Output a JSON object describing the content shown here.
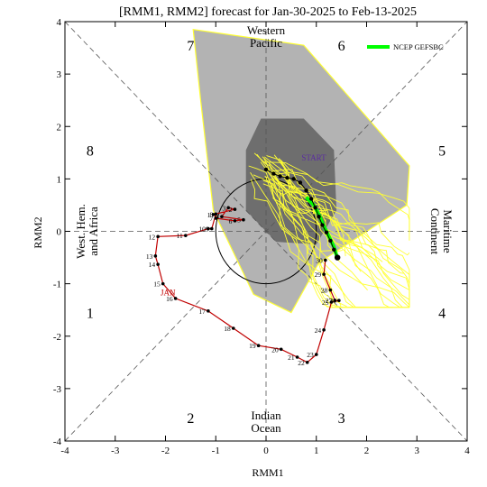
{
  "chart_data": {
    "type": "line",
    "title": "[RMM1, RMM2] forecast for Jan-30-2025 to Feb-13-2025",
    "xlabel": "RMM1",
    "ylabel": "RMM2",
    "xlim": [
      -4,
      4
    ],
    "ylim": [
      -4,
      4
    ],
    "xticks": [
      "-4",
      "-3",
      "-2",
      "-1",
      "0",
      "1",
      "2",
      "3",
      "4"
    ],
    "yticks": [
      "-4",
      "-3",
      "-2",
      "-1",
      "0",
      "1",
      "2",
      "3",
      "4"
    ],
    "grid": false,
    "legend": "top-right",
    "phase_numbers": [
      {
        "label": "1",
        "x": -3.5,
        "y": -1.55
      },
      {
        "label": "2",
        "x": -1.5,
        "y": -3.55
      },
      {
        "label": "3",
        "x": 1.5,
        "y": -3.55
      },
      {
        "label": "4",
        "x": 3.5,
        "y": -1.55
      },
      {
        "label": "5",
        "x": 3.5,
        "y": 1.55
      },
      {
        "label": "6",
        "x": 1.5,
        "y": 3.55
      },
      {
        "label": "7",
        "x": -1.5,
        "y": 3.55
      },
      {
        "label": "8",
        "x": -3.5,
        "y": 1.55
      }
    ],
    "region_labels": {
      "top": [
        "Western",
        "Pacific"
      ],
      "bottom": [
        "Indian",
        "Ocean"
      ],
      "left": [
        "West. Hem.",
        "and Africa"
      ],
      "right": [
        "Maritime",
        "Continent"
      ]
    },
    "annotations": {
      "jan": {
        "text": "JAN",
        "x": -1.95,
        "y": -1.22
      },
      "start": {
        "text": "START",
        "x": 0.95,
        "y": 1.35
      }
    },
    "observed": {
      "name": "",
      "color": "#c00000",
      "points": [
        {
          "label": "1",
          "x": -1.05,
          "y": 0.32
        },
        {
          "label": "2",
          "x": -0.62,
          "y": 0.42
        },
        {
          "label": "3",
          "x": -0.75,
          "y": 0.45
        },
        {
          "label": "4",
          "x": -0.88,
          "y": 0.28
        },
        {
          "label": "5",
          "x": -0.45,
          "y": 0.22
        },
        {
          "label": "6",
          "x": -0.62,
          "y": 0.2
        },
        {
          "label": "7",
          "x": -1.0,
          "y": 0.25
        },
        {
          "label": "8",
          "x": -1.0,
          "y": 0.33
        },
        {
          "label": "9",
          "x": -1.08,
          "y": 0.05
        },
        {
          "label": "10",
          "x": -1.15,
          "y": 0.05
        },
        {
          "label": "11",
          "x": -1.6,
          "y": -0.08
        },
        {
          "label": "12",
          "x": -2.15,
          "y": -0.1
        },
        {
          "label": "13",
          "x": -2.2,
          "y": -0.47
        },
        {
          "label": "14",
          "x": -2.15,
          "y": -0.63
        },
        {
          "label": "15",
          "x": -2.05,
          "y": -1.0
        },
        {
          "label": "16",
          "x": -1.8,
          "y": -1.28
        },
        {
          "label": "17",
          "x": -1.15,
          "y": -1.52
        },
        {
          "label": "18",
          "x": -0.65,
          "y": -1.85
        },
        {
          "label": "19",
          "x": -0.15,
          "y": -2.18
        },
        {
          "label": "20",
          "x": 0.3,
          "y": -2.25
        },
        {
          "label": "21",
          "x": 0.62,
          "y": -2.4
        },
        {
          "label": "22",
          "x": 0.82,
          "y": -2.5
        },
        {
          "label": "23",
          "x": 1.0,
          "y": -2.35
        },
        {
          "label": "24",
          "x": 1.15,
          "y": -1.88
        },
        {
          "label": "25",
          "x": 1.3,
          "y": -1.35
        },
        {
          "label": "26",
          "x": 1.45,
          "y": -1.32
        },
        {
          "label": "27",
          "x": 1.37,
          "y": -1.32
        },
        {
          "label": "28",
          "x": 1.28,
          "y": -1.12
        },
        {
          "label": "29",
          "x": 1.15,
          "y": -0.82
        },
        {
          "label": "30",
          "x": 1.18,
          "y": -0.55
        }
      ]
    },
    "ensemble_mean": {
      "color": "#000000",
      "points": [
        {
          "label": "1",
          "x": 0.0,
          "y": 1.18
        },
        {
          "label": "2",
          "x": 0.15,
          "y": 1.1
        },
        {
          "label": "3",
          "x": 0.28,
          "y": 1.05
        },
        {
          "label": "4",
          "x": 0.42,
          "y": 1.02
        },
        {
          "label": "5",
          "x": 0.55,
          "y": 1.0
        },
        {
          "label": "6",
          "x": 0.68,
          "y": 0.93
        },
        {
          "label": "7",
          "x": 0.8,
          "y": 0.78
        },
        {
          "label": "8",
          "x": 0.9,
          "y": 0.62
        },
        {
          "label": "9",
          "x": 0.98,
          "y": 0.45
        },
        {
          "label": "10",
          "x": 1.05,
          "y": 0.28
        },
        {
          "label": "11",
          "x": 1.12,
          "y": 0.12
        },
        {
          "label": "12",
          "x": 1.2,
          "y": -0.02
        },
        {
          "label": "13",
          "x": 1.28,
          "y": -0.18
        },
        {
          "label": "14",
          "x": 1.35,
          "y": -0.35
        },
        {
          "label": "15",
          "x": 1.42,
          "y": -0.5
        }
      ]
    },
    "series": [
      {
        "name": "NCEP GEFSBC",
        "color": "#00ff00",
        "values": [
          {
            "x": 0.8,
            "y": 0.65
          },
          {
            "x": 0.95,
            "y": 0.5
          },
          {
            "x": 1.05,
            "y": 0.32
          },
          {
            "x": 1.15,
            "y": 0.1
          },
          {
            "x": 1.25,
            "y": -0.1
          },
          {
            "x": 1.35,
            "y": -0.3
          },
          {
            "x": 1.42,
            "y": -0.52
          }
        ]
      }
    ],
    "shading": {
      "outer_color": "#b3b3b3",
      "inner_color": "#6e6e6e",
      "outer": [
        {
          "x": -1.45,
          "y": 3.85
        },
        {
          "x": 0.75,
          "y": 3.55
        },
        {
          "x": 2.85,
          "y": 1.25
        },
        {
          "x": 2.8,
          "y": 0.5
        },
        {
          "x": 1.05,
          "y": -0.6
        },
        {
          "x": 0.5,
          "y": -1.55
        },
        {
          "x": -0.25,
          "y": -1.2
        },
        {
          "x": -1.05,
          "y": 0.4
        },
        {
          "x": -1.3,
          "y": 2.5
        }
      ],
      "inner": [
        {
          "x": -0.4,
          "y": 1.55
        },
        {
          "x": -0.1,
          "y": 2.15
        },
        {
          "x": 0.75,
          "y": 2.15
        },
        {
          "x": 1.35,
          "y": 1.55
        },
        {
          "x": 1.4,
          "y": 0.4
        },
        {
          "x": 1.0,
          "y": -0.25
        },
        {
          "x": 0.2,
          "y": -0.2
        },
        {
          "x": -0.4,
          "y": 0.4
        }
      ]
    },
    "member_color": "#ffff33"
  }
}
